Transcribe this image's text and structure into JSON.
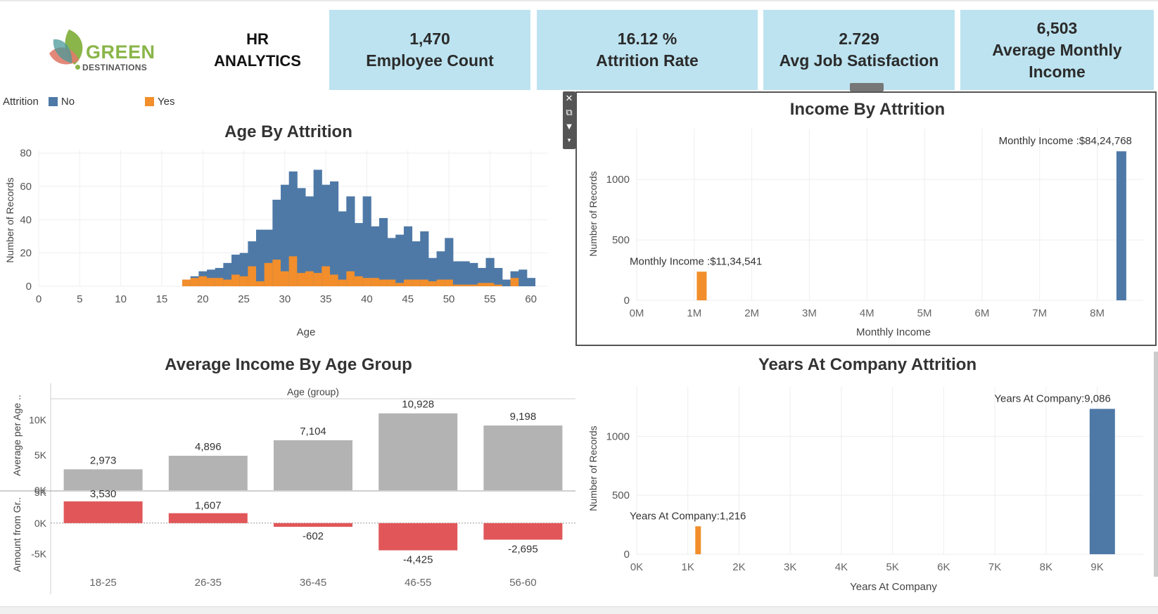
{
  "header": {
    "logo_text": "GREEN",
    "logo_subtext": "DESTINATIONS",
    "title_line1": "HR",
    "title_line2": "ANALYTICS"
  },
  "kpis": [
    {
      "value": "1,470",
      "label": "Employee Count"
    },
    {
      "value": "16.12 %",
      "label": "Attrition Rate"
    },
    {
      "value": "2.729",
      "label": "Avg Job Satisfaction"
    },
    {
      "value": "6,503",
      "label": "Average Monthly",
      "label2": "Income"
    }
  ],
  "legend": {
    "title": "Attrition",
    "items": [
      {
        "label": "No",
        "color": "#4e79a7"
      },
      {
        "label": "Yes",
        "color": "#f28e2b"
      }
    ]
  },
  "colors": {
    "no": "#4e79a7",
    "yes": "#f28e2b",
    "avg_bar": "#b3b3b3",
    "diff_bar": "#e15759"
  },
  "toolbar_icons": [
    "close-icon",
    "popout-icon",
    "filter-icon",
    "dropdown-icon"
  ],
  "chart_data": [
    {
      "id": "age",
      "type": "bar",
      "title": "Age By Attrition",
      "xlabel": "Age",
      "ylabel": "Number of Records",
      "xlim": [
        0,
        62
      ],
      "ylim": [
        0,
        82
      ],
      "xticks": [
        0,
        5,
        10,
        15,
        20,
        25,
        30,
        35,
        40,
        45,
        50,
        55,
        60
      ],
      "yticks": [
        0,
        20,
        40,
        60,
        80
      ],
      "x": [
        18,
        19,
        20,
        21,
        22,
        23,
        24,
        25,
        26,
        27,
        28,
        29,
        30,
        31,
        32,
        33,
        34,
        35,
        36,
        37,
        38,
        39,
        40,
        41,
        42,
        43,
        44,
        45,
        46,
        47,
        48,
        49,
        50,
        51,
        52,
        53,
        54,
        55,
        56,
        57,
        58,
        59,
        60
      ],
      "series": [
        {
          "name": "No",
          "values": [
            4,
            6,
            9,
            10,
            11,
            14,
            19,
            20,
            27,
            34,
            34,
            52,
            61,
            69,
            59,
            54,
            70,
            61,
            63,
            45,
            54,
            38,
            54,
            36,
            41,
            29,
            31,
            36,
            27,
            33,
            17,
            21,
            29,
            15,
            15,
            14,
            11,
            17,
            11,
            4,
            9,
            10,
            5
          ]
        },
        {
          "name": "Yes",
          "values": [
            4,
            5,
            6,
            5,
            5,
            4,
            7,
            6,
            12,
            3,
            14,
            16,
            9,
            18,
            8,
            9,
            8,
            12,
            7,
            4,
            9,
            6,
            5,
            5,
            4,
            4,
            2,
            4,
            4,
            4,
            3,
            4,
            4,
            1,
            1,
            1,
            2,
            2,
            1,
            0,
            5,
            0,
            0
          ]
        }
      ]
    },
    {
      "id": "income",
      "type": "bar",
      "title": "Income By Attrition",
      "xlabel": "Monthly Income",
      "ylabel": "Number of Records",
      "xlim": [
        0,
        8.8
      ],
      "ylim": [
        0,
        1420
      ],
      "xticks": [
        "0M",
        "1M",
        "2M",
        "3M",
        "4M",
        "5M",
        "6M",
        "7M",
        "8M"
      ],
      "yticks": [
        0,
        500,
        1000
      ],
      "bars": [
        {
          "name": "Yes",
          "x": 1.13,
          "value": 237,
          "label": "Monthly Income :$11,34,541"
        },
        {
          "name": "No",
          "x": 8.42,
          "value": 1233,
          "label": "Monthly Income :$84,24,768"
        }
      ]
    },
    {
      "id": "avg_income",
      "type": "bar",
      "title": "Average Income By Age Group",
      "xlabel": "Age (group)",
      "ylabel_top": "Average per Age ..",
      "ylabel_bottom": "Amount from Gr..",
      "categories": [
        "18-25",
        "26-35",
        "36-45",
        "46-55",
        "56-60"
      ],
      "series": [
        {
          "name": "Average per Age",
          "values": [
            2973,
            4896,
            7104,
            10928,
            9198
          ],
          "labels": [
            "2,973",
            "4,896",
            "7,104",
            "10,928",
            "9,198"
          ],
          "yticks": [
            "0K",
            "5K",
            "10K"
          ],
          "ylim": [
            0,
            12200
          ]
        },
        {
          "name": "Amount from Group",
          "values": [
            3530,
            1607,
            -602,
            -4425,
            -2695
          ],
          "labels": [
            "3,530",
            "1,607",
            "-602",
            "-4,425",
            "-2,695"
          ],
          "yticks": [
            "-5K",
            "0K",
            "5K"
          ],
          "ylim": [
            -7000,
            5000
          ]
        }
      ]
    },
    {
      "id": "years",
      "type": "bar",
      "title": "Years At Company Attrition",
      "xlabel": "Years At Company",
      "ylabel": "Number of Records",
      "xlim": [
        0,
        9.9
      ],
      "ylim": [
        0,
        1420
      ],
      "xticks": [
        "0K",
        "1K",
        "2K",
        "3K",
        "4K",
        "5K",
        "6K",
        "7K",
        "8K",
        "9K"
      ],
      "yticks": [
        0,
        500,
        1000
      ],
      "bars": [
        {
          "name": "Yes",
          "x": 1.2,
          "value": 237,
          "label": "Years At Company:1,216"
        },
        {
          "name": "No",
          "x": 9.1,
          "value": 1233,
          "label": "Years At Company:9,086"
        }
      ]
    }
  ]
}
